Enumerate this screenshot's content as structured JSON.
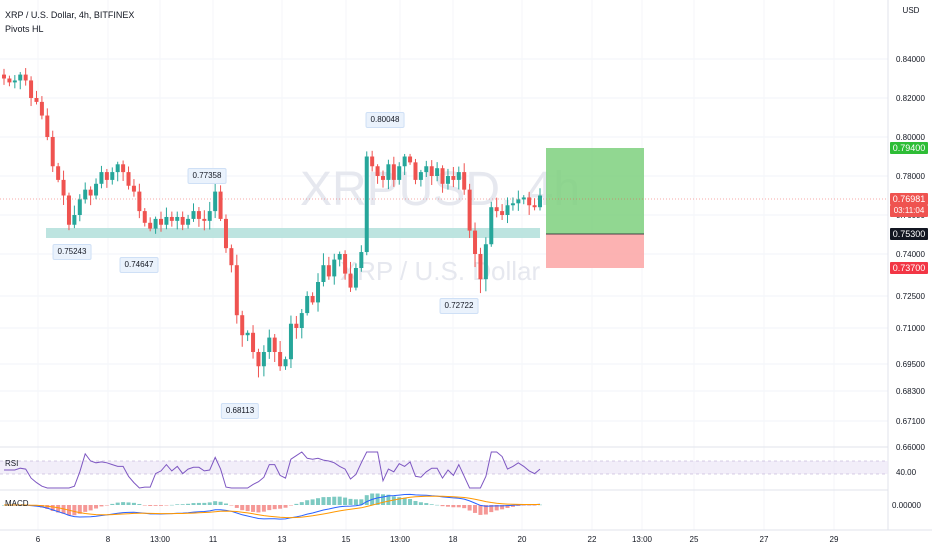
{
  "header": {
    "title": "XRP / U.S. Dollar, 4h, BITFINEX",
    "indicator": "Pivots HL",
    "currency_button": "USD"
  },
  "watermark": {
    "symbol": "XRPUSD, 4h",
    "name": "XRP / U.S. Dollar"
  },
  "colors": {
    "up": "#26a69a",
    "down": "#ef5350",
    "zone": "#b2dfdb",
    "target": "#7ed07e",
    "stop": "#fca5a5",
    "rsi": "#7e57c2",
    "macd": "#2962ff",
    "signal": "#ff9800"
  },
  "chart_data": {
    "type": "candlestick",
    "symbol": "XRP / U.S. Dollar",
    "interval": "4h",
    "exchange": "BITFINEX",
    "y_ticks": [
      "0.84000",
      "0.82000",
      "0.80000",
      "0.78000",
      "0.76000",
      "0.74000",
      "0.72500",
      "0.71000",
      "0.69500",
      "0.68300",
      "0.67100",
      "0.66000"
    ],
    "x_ticks": [
      "6",
      "8",
      "13:00",
      "11",
      "13",
      "15",
      "13:00",
      "18",
      "20",
      "22",
      "13:00",
      "25",
      "27",
      "29"
    ],
    "pivots": [
      "0.75243",
      "0.74647",
      "0.77358",
      "0.68113",
      "0.80048",
      "0.72722"
    ],
    "price_labels": {
      "target": "0.79400",
      "current": "0.76981",
      "countdown": "03:11:04",
      "entry": "0.75300",
      "stop": "0.73700"
    },
    "close_approx": [
      0.83,
      0.828,
      0.829,
      0.832,
      0.829,
      0.82,
      0.818,
      0.811,
      0.8,
      0.785,
      0.778,
      0.77,
      0.755,
      0.76,
      0.768,
      0.773,
      0.77,
      0.776,
      0.782,
      0.778,
      0.782,
      0.786,
      0.782,
      0.775,
      0.772,
      0.762,
      0.756,
      0.753,
      0.758,
      0.755,
      0.759,
      0.757,
      0.759,
      0.755,
      0.758,
      0.762,
      0.758,
      0.757,
      0.762,
      0.772,
      0.758,
      0.743,
      0.736,
      0.716,
      0.707,
      0.708,
      0.7,
      0.694,
      0.7,
      0.706,
      0.7,
      0.694,
      0.697,
      0.712,
      0.71,
      0.717,
      0.725,
      0.722,
      0.73,
      0.736,
      0.732,
      0.738,
      0.74,
      0.733,
      0.728,
      0.735,
      0.741,
      0.79,
      0.785,
      0.78,
      0.778,
      0.786,
      0.778,
      0.785,
      0.79,
      0.787,
      0.778,
      0.782,
      0.785,
      0.78,
      0.784,
      0.776,
      0.78,
      0.778,
      0.782,
      0.773,
      0.752,
      0.74,
      0.731,
      0.745,
      0.764,
      0.762,
      0.76,
      0.765,
      0.766,
      0.768,
      0.769,
      0.765,
      0.764,
      0.77
    ],
    "rsi": {
      "label": "RSI",
      "tick": "40.00"
    },
    "macd": {
      "label": "MACD",
      "tick": "0.00000"
    }
  }
}
